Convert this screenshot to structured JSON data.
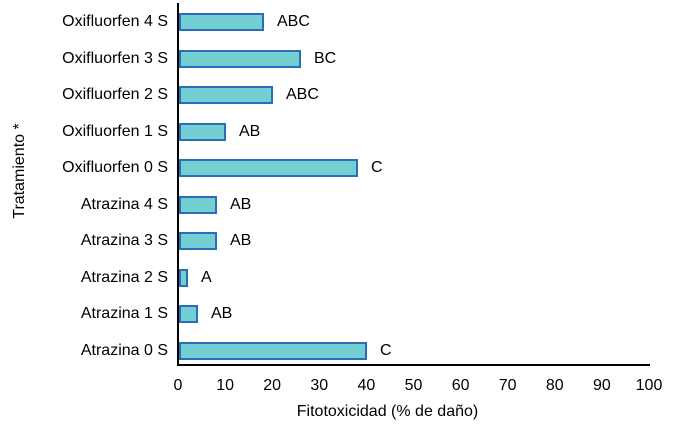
{
  "chart_data": {
    "type": "bar",
    "orientation": "horizontal",
    "title": "",
    "xlabel": "Fitotoxicidad (% de daño)",
    "ylabel": "Tratamiento *",
    "xlim": [
      0,
      100
    ],
    "xticks": [
      0,
      10,
      20,
      30,
      40,
      50,
      60,
      70,
      80,
      90,
      100
    ],
    "grid": false,
    "legend": false,
    "categories": [
      "Oxifluorfen 4 S",
      "Oxifluorfen 3 S",
      "Oxifluorfen 2 S",
      "Oxifluorfen 1 S",
      "Oxifluorfen 0 S",
      "Atrazina 4 S",
      "Atrazina 3 S",
      "Atrazina 2 S",
      "Atrazina 1 S",
      "Atrazina 0 S"
    ],
    "values": [
      18,
      26,
      20,
      10,
      38,
      8,
      8,
      2,
      4,
      40
    ],
    "bar_labels": [
      "ABC",
      "BC",
      "ABC",
      "AB",
      "C",
      "AB",
      "AB",
      "A",
      "AB",
      "C"
    ],
    "colors": {
      "bar_fill": "#74cfd2",
      "bar_border": "#2d6db8",
      "axis": "#000000",
      "text": "#000000",
      "background": "#ffffff"
    }
  }
}
